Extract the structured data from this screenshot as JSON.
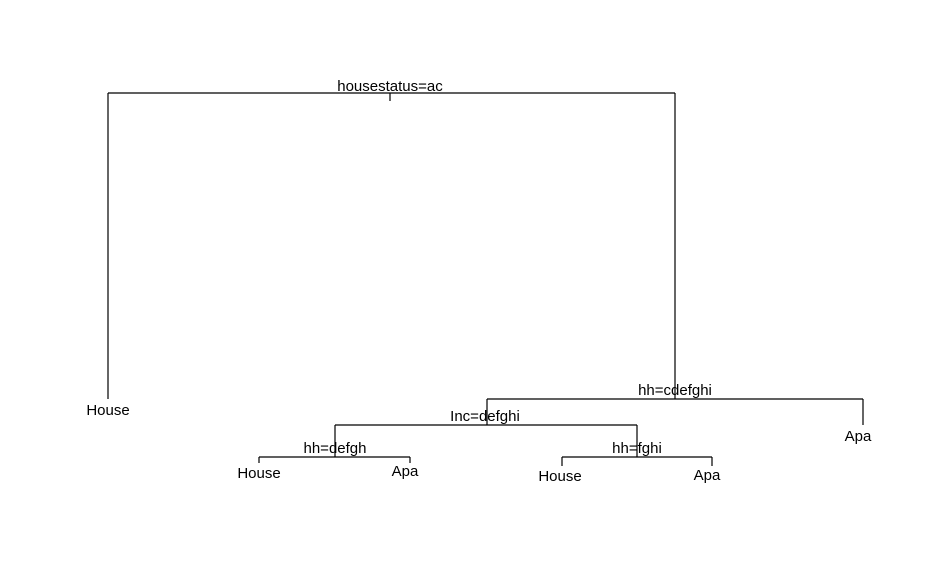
{
  "tree": {
    "splits": [
      {
        "id": "root",
        "label": "housestatus=ac"
      },
      {
        "id": "n2",
        "label": "hh=cdefghi"
      },
      {
        "id": "n3",
        "label": "Inc=defghi"
      },
      {
        "id": "n4",
        "label": "hh=defgh"
      },
      {
        "id": "n5",
        "label": "hh=fghi"
      }
    ],
    "leaves": [
      {
        "id": "l1",
        "label": "House"
      },
      {
        "id": "l2",
        "label": "Apa"
      },
      {
        "id": "l3",
        "label": "House"
      },
      {
        "id": "l4",
        "label": "Apa"
      },
      {
        "id": "l5",
        "label": "House"
      },
      {
        "id": "l6",
        "label": "Apa"
      }
    ]
  }
}
